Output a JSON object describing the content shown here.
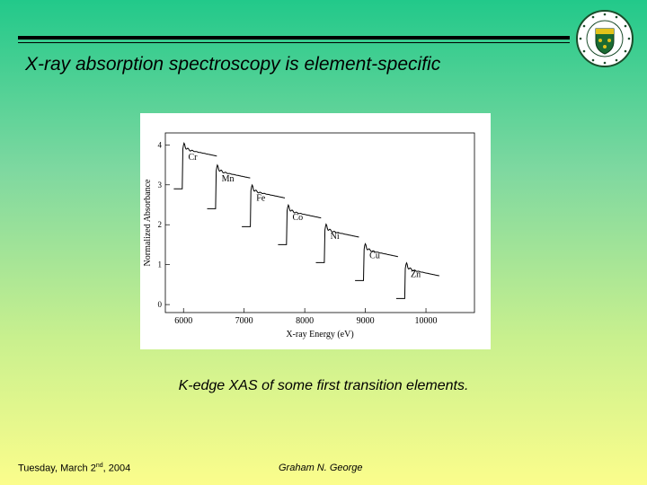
{
  "slide": {
    "title": "X-ray absorption spectroscopy is element-specific",
    "caption": "K-edge XAS of some first transition elements.",
    "footer": {
      "date_prefix": "Tuesday, March 2",
      "date_sup": "nd",
      "date_suffix": ", 2004",
      "author": "Graham N. George"
    },
    "logo_icon": "university-of-saskatchewan-crest-icon"
  },
  "chart_data": {
    "type": "line",
    "xlabel": "X-ray Energy (eV)",
    "ylabel": "Normalized Absorbance",
    "xlim": [
      5700,
      10800
    ],
    "ylim": [
      -0.2,
      4.3
    ],
    "xticks": [
      6000,
      7000,
      8000,
      9000,
      10000
    ],
    "yticks": [
      0,
      1,
      2,
      3,
      4
    ],
    "series": [
      {
        "name": "Cr",
        "edge": 5989,
        "pre": 2.9,
        "jump": 1.0
      },
      {
        "name": "Mn",
        "edge": 6539,
        "pre": 2.4,
        "jump": 0.95
      },
      {
        "name": "Fe",
        "edge": 7112,
        "pre": 1.95,
        "jump": 0.9
      },
      {
        "name": "Co",
        "edge": 7709,
        "pre": 1.5,
        "jump": 0.85
      },
      {
        "name": "Ni",
        "edge": 8333,
        "pre": 1.05,
        "jump": 0.82
      },
      {
        "name": "Cu",
        "edge": 8979,
        "pre": 0.6,
        "jump": 0.78
      },
      {
        "name": "Zn",
        "edge": 9659,
        "pre": 0.15,
        "jump": 0.75
      }
    ]
  }
}
